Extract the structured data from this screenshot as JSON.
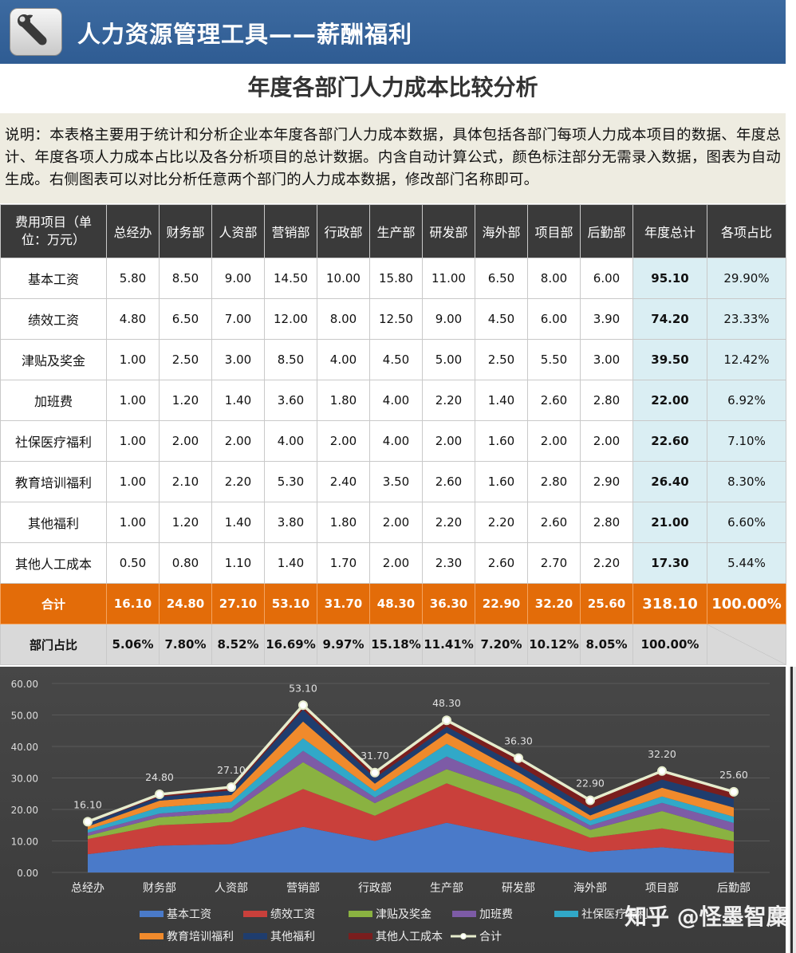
{
  "app": {
    "title": "人力资源管理工具——薪酬福利",
    "icon": "wrench-icon"
  },
  "subtitle": "年度各部门人力成本比较分析",
  "description": "说明：本表格主要用于统计和分析企业本年度各部门人力成本数据，具体包括各部门每项人力成本项目的数据、年度总计、年度各项人力成本占比以及各分析项目的总计数据。内含自动计算公式，颜色标注部分无需录入数据，图表为自动生成。右侧图表可以对比分析任意两个部门的人力成本数据，修改部门名称即可。",
  "table": {
    "headers": [
      "费用项目（单位：万元）",
      "总经办",
      "财务部",
      "人资部",
      "营销部",
      "行政部",
      "生产部",
      "研发部",
      "海外部",
      "项目部",
      "后勤部",
      "年度总计",
      "各项占比"
    ],
    "rows": [
      {
        "label": "基本工资",
        "values": [
          "5.80",
          "8.50",
          "9.00",
          "14.50",
          "10.00",
          "15.80",
          "11.00",
          "6.50",
          "8.00",
          "6.00"
        ],
        "total": "95.10",
        "share": "29.90%"
      },
      {
        "label": "绩效工资",
        "values": [
          "4.80",
          "6.50",
          "7.00",
          "12.00",
          "8.00",
          "12.50",
          "9.00",
          "4.50",
          "6.00",
          "3.90"
        ],
        "total": "74.20",
        "share": "23.33%"
      },
      {
        "label": "津贴及奖金",
        "values": [
          "1.00",
          "2.50",
          "3.00",
          "8.50",
          "4.00",
          "4.50",
          "5.00",
          "2.50",
          "5.50",
          "3.00"
        ],
        "total": "39.50",
        "share": "12.42%"
      },
      {
        "label": "加班费",
        "values": [
          "1.00",
          "1.20",
          "1.40",
          "3.60",
          "1.80",
          "4.00",
          "2.20",
          "1.40",
          "2.60",
          "2.80"
        ],
        "total": "22.00",
        "share": "6.92%"
      },
      {
        "label": "社保医疗福利",
        "values": [
          "1.00",
          "2.00",
          "2.00",
          "4.00",
          "2.00",
          "4.00",
          "2.00",
          "1.60",
          "2.00",
          "2.00"
        ],
        "total": "22.60",
        "share": "7.10%"
      },
      {
        "label": "教育培训福利",
        "values": [
          "1.00",
          "2.10",
          "2.20",
          "5.30",
          "2.40",
          "3.50",
          "2.60",
          "1.60",
          "2.80",
          "2.90"
        ],
        "total": "26.40",
        "share": "8.30%"
      },
      {
        "label": "其他福利",
        "values": [
          "1.00",
          "1.20",
          "1.40",
          "3.80",
          "1.80",
          "2.00",
          "2.20",
          "2.20",
          "2.60",
          "2.80"
        ],
        "total": "21.00",
        "share": "6.60%"
      },
      {
        "label": "其他人工成本",
        "values": [
          "0.50",
          "0.80",
          "1.10",
          "1.40",
          "1.70",
          "2.00",
          "2.30",
          "2.60",
          "2.70",
          "2.20"
        ],
        "total": "17.30",
        "share": "5.44%"
      }
    ],
    "sum_row": {
      "label": "合计",
      "values": [
        "16.10",
        "24.80",
        "27.10",
        "53.10",
        "31.70",
        "48.30",
        "36.30",
        "22.90",
        "32.20",
        "25.60"
      ],
      "total": "318.10",
      "share": "100.00%"
    },
    "share_row": {
      "label": "部门占比",
      "values": [
        "5.06%",
        "7.80%",
        "8.52%",
        "16.69%",
        "9.97%",
        "15.18%",
        "11.41%",
        "7.20%",
        "10.12%",
        "8.05%"
      ],
      "total": "100.00%"
    }
  },
  "chart_data": {
    "type": "area",
    "stacked": true,
    "categories": [
      "总经办",
      "财务部",
      "人资部",
      "营销部",
      "行政部",
      "生产部",
      "研发部",
      "海外部",
      "项目部",
      "后勤部"
    ],
    "ylim": [
      0,
      60
    ],
    "yticks": [
      "0.00",
      "10.00",
      "20.00",
      "30.00",
      "40.00",
      "50.00",
      "60.00"
    ],
    "grid": true,
    "legend_position": "bottom",
    "series": [
      {
        "name": "基本工资",
        "color": "#4a7ac9",
        "values": [
          5.8,
          8.5,
          9.0,
          14.5,
          10.0,
          15.8,
          11.0,
          6.5,
          8.0,
          6.0
        ]
      },
      {
        "name": "绩效工资",
        "color": "#c9403b",
        "values": [
          4.8,
          6.5,
          7.0,
          12.0,
          8.0,
          12.5,
          9.0,
          4.5,
          6.0,
          3.9
        ]
      },
      {
        "name": "津贴及奖金",
        "color": "#8ab241",
        "values": [
          1.0,
          2.5,
          3.0,
          8.5,
          4.0,
          4.5,
          5.0,
          2.5,
          5.5,
          3.0
        ]
      },
      {
        "name": "加班费",
        "color": "#7d5ba6",
        "values": [
          1.0,
          1.2,
          1.4,
          3.6,
          1.8,
          4.0,
          2.2,
          1.4,
          2.6,
          2.8
        ]
      },
      {
        "name": "社保医疗福利",
        "color": "#31a8c8",
        "values": [
          1.0,
          2.0,
          2.0,
          4.0,
          2.0,
          4.0,
          2.0,
          1.6,
          2.0,
          2.0
        ]
      },
      {
        "name": "教育培训福利",
        "color": "#f08a2c",
        "values": [
          1.0,
          2.1,
          2.2,
          5.3,
          2.4,
          3.5,
          2.6,
          1.6,
          2.8,
          2.9
        ]
      },
      {
        "name": "其他福利",
        "color": "#1f3d6e",
        "values": [
          1.0,
          1.2,
          1.4,
          3.8,
          1.8,
          2.0,
          2.2,
          2.2,
          2.6,
          2.8
        ]
      },
      {
        "name": "其他人工成本",
        "color": "#7a1e1e",
        "values": [
          0.5,
          0.8,
          1.1,
          1.4,
          1.7,
          2.0,
          2.3,
          2.6,
          2.7,
          2.2
        ]
      }
    ],
    "total_line": {
      "name": "合计",
      "color": "#e6eccd",
      "values": [
        16.1,
        24.8,
        27.1,
        53.1,
        31.7,
        48.3,
        36.3,
        22.9,
        32.2,
        25.6
      ],
      "labels": [
        "16.10",
        "24.80",
        "27.10",
        "53.10",
        "31.70",
        "48.30",
        "36.30",
        "22.90",
        "32.20",
        "25.60"
      ]
    }
  },
  "watermark": "知乎 @怪墨智麋"
}
